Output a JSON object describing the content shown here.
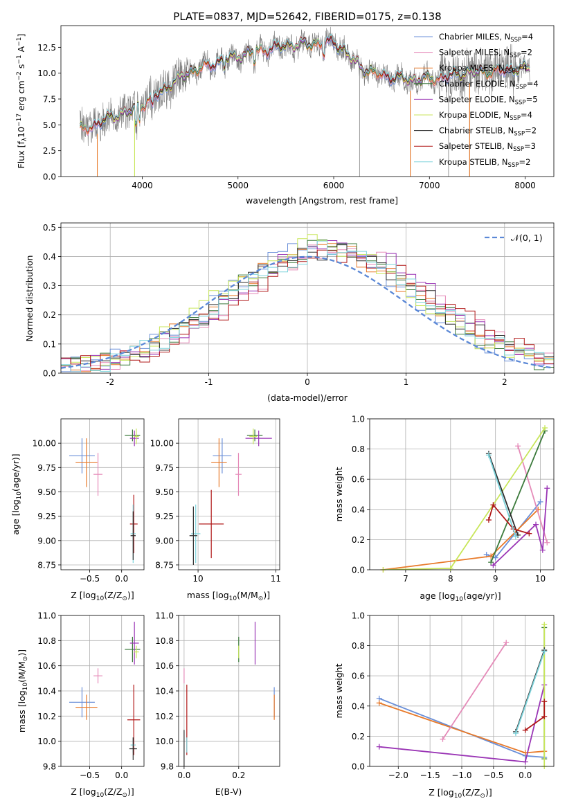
{
  "figure": {
    "title": "PLATE=0837, MJD=52642, FIBERID=0175, z=0.138"
  },
  "colors": {
    "Chabrier MILES": "#6a8fd8",
    "Salpeter MILES": "#e58ab8",
    "Kroupa MILES": "#e87a2a",
    "Chabrier ELODIE": "#3b7a3b",
    "Salpeter ELODIE": "#9a35b5",
    "Kroupa ELODIE": "#c8e65a",
    "Chabrier STELIB": "#2c2c2c",
    "Salpeter STELIB": "#b01818",
    "Kroupa STELIB": "#7dd4dc",
    "data": "#7f7f7f",
    "gaussian": "#5b88d6"
  },
  "chart_data": [
    {
      "id": "spectrum",
      "type": "line",
      "title": "PLATE=0837, MJD=52642, FIBERID=0175, z=0.138",
      "xlabel": "wavelength [Angstrom, rest frame]",
      "ylabel": "Flux [f_λ 10^-17 erg cm^-2 s^-1 A^-1]",
      "xlim": [
        3150,
        8300
      ],
      "ylim": [
        0,
        14.6
      ],
      "xticks": [
        "4000",
        "5000",
        "6000",
        "7000",
        "8000"
      ],
      "yticks": [
        "0.0",
        "2.5",
        "5.0",
        "7.5",
        "10.0",
        "12.5"
      ],
      "legend_position": "upper right",
      "legend": [
        {
          "model": "Chabrier MILES",
          "label": "Chabrier MILES, N",
          "sub": "SSP",
          "tail": "=4"
        },
        {
          "model": "Salpeter MILES",
          "label": "Salpeter MILES, N",
          "sub": "SSP",
          "tail": "=2"
        },
        {
          "model": "Kroupa MILES",
          "label": "Kroupa MILES, N",
          "sub": "SSP",
          "tail": "=4"
        },
        {
          "model": "Chabrier ELODIE",
          "label": "Chabrier ELODIE, N",
          "sub": "SSP",
          "tail": "=4"
        },
        {
          "model": "Salpeter ELODIE",
          "label": "Salpeter ELODIE, N",
          "sub": "SSP",
          "tail": "=5"
        },
        {
          "model": "Kroupa ELODIE",
          "label": "Kroupa ELODIE, N",
          "sub": "SSP",
          "tail": "=4"
        },
        {
          "model": "Chabrier STELIB",
          "label": "Chabrier STELIB, N",
          "sub": "SSP",
          "tail": "=2"
        },
        {
          "model": "Salpeter STELIB",
          "label": "Salpeter STELIB, N",
          "sub": "SSP",
          "tail": "=3"
        },
        {
          "model": "Kroupa STELIB",
          "label": "Kroupa STELIB, N",
          "sub": "SSP",
          "tail": "=2"
        }
      ],
      "continuum_knots": {
        "x": [
          3350,
          3500,
          3700,
          3900,
          4000,
          4200,
          4500,
          4800,
          5000,
          5200,
          5500,
          5800,
          6000,
          6100,
          6200,
          6300,
          6400,
          6500,
          6600,
          6800,
          7000,
          7200,
          7400,
          7600,
          7800,
          8000,
          8050
        ],
        "y": [
          4.5,
          5.0,
          5.8,
          6.4,
          7.0,
          8.2,
          10.2,
          11.1,
          11.6,
          12.2,
          12.6,
          12.9,
          13.0,
          12.2,
          11.2,
          10.5,
          10.1,
          9.9,
          9.6,
          9.3,
          9.5,
          9.7,
          10.0,
          10.2,
          10.3,
          10.4,
          10.4
        ]
      },
      "vertical_drops_x": [
        3530,
        3920,
        6270,
        6800,
        7200,
        7420
      ]
    },
    {
      "id": "residuals",
      "type": "histogram",
      "xlabel": "(data-model)/error",
      "ylabel": "Normed distribution",
      "xlim": [
        -2.5,
        2.5
      ],
      "ylim": [
        0,
        0.515
      ],
      "xticks": [
        "-2",
        "-1",
        "0",
        "1",
        "2"
      ],
      "yticks": [
        "0.0",
        "0.1",
        "0.2",
        "0.3",
        "0.4",
        "0.5"
      ],
      "reference_label": "𝒩(0, 1)",
      "legend_position": "upper right",
      "bin_width": 0.1,
      "series": [
        {
          "name": "Chabrier MILES",
          "shift": 0.12,
          "sigma": 0.95,
          "amp": 0.43,
          "seed": 3
        },
        {
          "name": "Salpeter MILES",
          "shift": 0.3,
          "sigma": 1.0,
          "amp": 0.41,
          "seed": 7
        },
        {
          "name": "Kroupa MILES",
          "shift": 0.15,
          "sigma": 0.97,
          "amp": 0.42,
          "seed": 11
        },
        {
          "name": "Chabrier ELODIE",
          "shift": 0.18,
          "sigma": 0.98,
          "amp": 0.42,
          "seed": 13
        },
        {
          "name": "Salpeter ELODIE",
          "shift": 0.28,
          "sigma": 1.0,
          "amp": 0.43,
          "seed": 17
        },
        {
          "name": "Kroupa ELODIE",
          "shift": 0.1,
          "sigma": 0.95,
          "amp": 0.44,
          "seed": 19
        },
        {
          "name": "Chabrier STELIB",
          "shift": 0.22,
          "sigma": 1.0,
          "amp": 0.41,
          "seed": 23
        },
        {
          "name": "Salpeter STELIB",
          "shift": 0.32,
          "sigma": 1.02,
          "amp": 0.4,
          "seed": 29
        },
        {
          "name": "Kroupa STELIB",
          "shift": 0.2,
          "sigma": 0.98,
          "amp": 0.41,
          "seed": 31
        }
      ]
    },
    {
      "id": "age-vs-Z",
      "type": "scatter",
      "xlabel": "Z [log10(Z/Z⊙)]",
      "ylabel": "age [log10(age/yr)]",
      "xlim": [
        -0.95,
        0.35
      ],
      "ylim": [
        8.7,
        10.25
      ],
      "xticks": [
        {
          "v": -0.5,
          "t": "−0.5"
        },
        {
          "v": 0.0,
          "t": "0.0"
        }
      ],
      "yticks": [
        {
          "v": 8.75,
          "t": "8.75"
        },
        {
          "v": 9.0,
          "t": "9.00"
        },
        {
          "v": 9.25,
          "t": "9.25"
        },
        {
          "v": 9.5,
          "t": "9.50"
        },
        {
          "v": 9.75,
          "t": "9.75"
        },
        {
          "v": 10.0,
          "t": "10.00"
        }
      ],
      "points": [
        {
          "model": "Chabrier MILES",
          "x": -0.62,
          "y": 9.87,
          "ex": 0.2,
          "ey": 0.18
        },
        {
          "model": "Kroupa MILES",
          "x": -0.55,
          "y": 9.8,
          "ex": 0.17,
          "ey": 0.25
        },
        {
          "model": "Salpeter MILES",
          "x": -0.37,
          "y": 9.68,
          "ex": 0.07,
          "ey": 0.22
        },
        {
          "model": "Chabrier ELODIE",
          "x": 0.17,
          "y": 10.08,
          "ex": 0.12,
          "ey": 0.06
        },
        {
          "model": "Salpeter ELODIE",
          "x": 0.2,
          "y": 10.05,
          "ex": 0.07,
          "ey": 0.08
        },
        {
          "model": "Kroupa ELODIE",
          "x": 0.23,
          "y": 10.07,
          "ex": 0.04,
          "ey": 0.08
        },
        {
          "model": "Salpeter STELIB",
          "x": 0.19,
          "y": 9.17,
          "ex": 0.06,
          "ey": 0.3
        },
        {
          "model": "Kroupa STELIB",
          "x": 0.18,
          "y": 9.07,
          "ex": 0.04,
          "ey": 0.3
        },
        {
          "model": "Chabrier STELIB",
          "x": 0.18,
          "y": 9.05,
          "ex": 0.04,
          "ey": 0.25
        }
      ]
    },
    {
      "id": "age-vs-mass",
      "type": "scatter",
      "xlabel": "mass [log10(M/M⊙)]",
      "ylabel": "",
      "xlim": [
        9.75,
        11.05
      ],
      "ylim": [
        8.7,
        10.25
      ],
      "xticks": [
        {
          "v": 10,
          "t": "10"
        },
        {
          "v": 11,
          "t": "11"
        }
      ],
      "yticks": [
        {
          "v": 8.75,
          "t": "8.75"
        },
        {
          "v": 9.0,
          "t": "9.00"
        },
        {
          "v": 9.25,
          "t": "9.25"
        },
        {
          "v": 9.5,
          "t": "9.50"
        },
        {
          "v": 9.75,
          "t": "9.75"
        },
        {
          "v": 10.0,
          "t": "10.00"
        }
      ],
      "points": [
        {
          "model": "Chabrier MILES",
          "x": 10.31,
          "y": 9.87,
          "ex": 0.12,
          "ey": 0.18
        },
        {
          "model": "Kroupa MILES",
          "x": 10.27,
          "y": 9.8,
          "ex": 0.1,
          "ey": 0.25
        },
        {
          "model": "Salpeter MILES",
          "x": 10.52,
          "y": 9.68,
          "ex": 0.04,
          "ey": 0.22
        },
        {
          "model": "Chabrier ELODIE",
          "x": 10.73,
          "y": 10.08,
          "ex": 0.1,
          "ey": 0.06
        },
        {
          "model": "Salpeter ELODIE",
          "x": 10.78,
          "y": 10.05,
          "ex": 0.17,
          "ey": 0.08
        },
        {
          "model": "Kroupa ELODIE",
          "x": 10.71,
          "y": 10.07,
          "ex": 0.05,
          "ey": 0.08
        },
        {
          "model": "Salpeter STELIB",
          "x": 10.17,
          "y": 9.17,
          "ex": 0.16,
          "ey": 0.35
        },
        {
          "model": "Kroupa STELIB",
          "x": 9.97,
          "y": 9.07,
          "ex": 0.06,
          "ey": 0.3
        },
        {
          "model": "Chabrier STELIB",
          "x": 9.94,
          "y": 9.05,
          "ex": 0.05,
          "ey": 0.3
        }
      ]
    },
    {
      "id": "massweight-vs-age",
      "type": "line",
      "xlabel": "age [log10(age/yr)]",
      "ylabel": "mass weight",
      "xlim": [
        6.2,
        10.3
      ],
      "ylim": [
        0,
        1
      ],
      "xticks": [
        {
          "v": 7,
          "t": "7"
        },
        {
          "v": 8,
          "t": "8"
        },
        {
          "v": 9,
          "t": "9"
        },
        {
          "v": 10,
          "t": "10"
        }
      ],
      "yticks": [
        {
          "v": 0,
          "t": "0.0"
        },
        {
          "v": 0.2,
          "t": "0.2"
        },
        {
          "v": 0.4,
          "t": "0.4"
        },
        {
          "v": 0.6,
          "t": "0.6"
        },
        {
          "v": 0.8,
          "t": "0.8"
        },
        {
          "v": 1,
          "t": "1.0"
        }
      ],
      "series": [
        {
          "name": "Chabrier MILES",
          "x": [
            8.8,
            9.0,
            10.0
          ],
          "y": [
            0.1,
            0.08,
            0.45
          ]
        },
        {
          "name": "Kroupa MILES",
          "x": [
            6.5,
            8.9,
            9.95
          ],
          "y": [
            0.0,
            0.09,
            0.4
          ]
        },
        {
          "name": "Salpeter MILES",
          "x": [
            9.5,
            10.15
          ],
          "y": [
            0.82,
            0.18
          ]
        },
        {
          "name": "Chabrier ELODIE",
          "x": [
            8.9,
            10.1
          ],
          "y": [
            0.05,
            0.92
          ]
        },
        {
          "name": "Salpeter ELODIE",
          "x": [
            8.95,
            9.9,
            10.05,
            10.15
          ],
          "y": [
            0.03,
            0.3,
            0.13,
            0.54
          ]
        },
        {
          "name": "Kroupa ELODIE",
          "x": [
            6.5,
            8.0,
            10.1
          ],
          "y": [
            0.0,
            0.01,
            0.94
          ]
        },
        {
          "name": "Chabrier STELIB",
          "x": [
            8.85,
            9.5
          ],
          "y": [
            0.77,
            0.23
          ]
        },
        {
          "name": "Salpeter STELIB",
          "x": [
            8.85,
            8.95,
            9.4,
            9.75
          ],
          "y": [
            0.33,
            0.43,
            0.27,
            0.24
          ]
        },
        {
          "name": "Kroupa STELIB",
          "x": [
            8.85,
            9.45
          ],
          "y": [
            0.76,
            0.22
          ]
        }
      ]
    },
    {
      "id": "mass-vs-Z",
      "type": "scatter",
      "xlabel": "Z [log10(Z/Z⊙)]",
      "ylabel": "mass [log10(M/M⊙)]",
      "xlim": [
        -0.95,
        0.35
      ],
      "ylim": [
        9.8,
        11.0
      ],
      "xticks": [
        {
          "v": -0.5,
          "t": "−0.5"
        },
        {
          "v": 0.0,
          "t": "0.0"
        }
      ],
      "yticks": [
        {
          "v": 9.8,
          "t": "9.8"
        },
        {
          "v": 10.0,
          "t": "10.0"
        },
        {
          "v": 10.2,
          "t": "10.2"
        },
        {
          "v": 10.4,
          "t": "10.4"
        },
        {
          "v": 10.6,
          "t": "10.6"
        },
        {
          "v": 10.8,
          "t": "10.8"
        },
        {
          "v": 11.0,
          "t": "11.0"
        }
      ],
      "points": [
        {
          "model": "Chabrier MILES",
          "x": -0.62,
          "y": 10.31,
          "ex": 0.2,
          "ey": 0.12
        },
        {
          "model": "Kroupa MILES",
          "x": -0.55,
          "y": 10.27,
          "ex": 0.17,
          "ey": 0.1
        },
        {
          "model": "Salpeter MILES",
          "x": -0.37,
          "y": 10.52,
          "ex": 0.07,
          "ey": 0.06
        },
        {
          "model": "Chabrier ELODIE",
          "x": 0.17,
          "y": 10.73,
          "ex": 0.12,
          "ey": 0.1
        },
        {
          "model": "Salpeter ELODIE",
          "x": 0.2,
          "y": 10.78,
          "ex": 0.07,
          "ey": 0.17
        },
        {
          "model": "Kroupa ELODIE",
          "x": 0.23,
          "y": 10.71,
          "ex": 0.04,
          "ey": 0.05
        },
        {
          "model": "Salpeter STELIB",
          "x": 0.19,
          "y": 10.17,
          "ex": 0.1,
          "ey": 0.28
        },
        {
          "model": "Kroupa STELIB",
          "x": 0.18,
          "y": 9.97,
          "ex": 0.04,
          "ey": 0.06
        },
        {
          "model": "Chabrier STELIB",
          "x": 0.18,
          "y": 9.94,
          "ex": 0.06,
          "ey": 0.09
        }
      ]
    },
    {
      "id": "mass-vs-ebv",
      "type": "scatter",
      "xlabel": "E(B-V)",
      "ylabel": "",
      "xlim": [
        -0.02,
        0.35
      ],
      "ylim": [
        9.8,
        11.0
      ],
      "xticks": [
        {
          "v": 0.0,
          "t": "0.0"
        },
        {
          "v": 0.2,
          "t": "0.2"
        }
      ],
      "yticks": [
        {
          "v": 9.8,
          "t": "9.8"
        },
        {
          "v": 10.0,
          "t": "10.0"
        },
        {
          "v": 10.2,
          "t": "10.2"
        },
        {
          "v": 10.4,
          "t": "10.4"
        },
        {
          "v": 10.6,
          "t": "10.6"
        },
        {
          "v": 10.8,
          "t": "10.8"
        },
        {
          "v": 11.0,
          "t": "11.0"
        }
      ],
      "points": [
        {
          "model": "Chabrier MILES",
          "x": 0.33,
          "y": 10.31,
          "ex": 0.0,
          "ey": 0.12
        },
        {
          "model": "Kroupa MILES",
          "x": 0.33,
          "y": 10.27,
          "ex": 0.0,
          "ey": 0.1
        },
        {
          "model": "Salpeter MILES",
          "x": 0.0,
          "y": 10.52,
          "ex": 0.0,
          "ey": 0.06
        },
        {
          "model": "Chabrier ELODIE",
          "x": 0.2,
          "y": 10.73,
          "ex": 0.0,
          "ey": 0.1
        },
        {
          "model": "Salpeter ELODIE",
          "x": 0.26,
          "y": 10.78,
          "ex": 0.0,
          "ey": 0.17
        },
        {
          "model": "Kroupa ELODIE",
          "x": 0.2,
          "y": 10.71,
          "ex": 0.0,
          "ey": 0.05
        },
        {
          "model": "Salpeter STELIB",
          "x": 0.01,
          "y": 10.17,
          "ex": 0.0,
          "ey": 0.28
        },
        {
          "model": "Kroupa STELIB",
          "x": 0.01,
          "y": 9.97,
          "ex": 0.0,
          "ey": 0.06
        },
        {
          "model": "Chabrier STELIB",
          "x": 0.0,
          "y": 9.94,
          "ex": 0.0,
          "ey": 0.15
        }
      ]
    },
    {
      "id": "massweight-vs-Z",
      "type": "line",
      "xlabel": "Z [log10(Z/Z⊙)]",
      "ylabel": "mass weight",
      "xlim": [
        -2.45,
        0.45
      ],
      "ylim": [
        0,
        1
      ],
      "xticks": [
        {
          "v": -2.0,
          "t": "−2.0"
        },
        {
          "v": -1.5,
          "t": "−1.5"
        },
        {
          "v": -1.0,
          "t": "−1.0"
        },
        {
          "v": -0.5,
          "t": "−0.5"
        },
        {
          "v": 0.0,
          "t": "0.0"
        }
      ],
      "yticks": [
        {
          "v": 0,
          "t": "0.0"
        },
        {
          "v": 0.2,
          "t": "0.2"
        },
        {
          "v": 0.4,
          "t": "0.4"
        },
        {
          "v": 0.6,
          "t": "0.6"
        },
        {
          "v": 0.8,
          "t": "0.8"
        },
        {
          "v": 1,
          "t": "1.0"
        }
      ],
      "series": [
        {
          "name": "Chabrier MILES",
          "x": [
            -2.3,
            0.0,
            0.3
          ],
          "y": [
            0.45,
            0.07,
            0.06
          ]
        },
        {
          "name": "Kroupa MILES",
          "x": [
            -2.3,
            0.0,
            0.3
          ],
          "y": [
            0.42,
            0.09,
            0.1
          ]
        },
        {
          "name": "Salpeter MILES",
          "x": [
            -1.3,
            -0.3
          ],
          "y": [
            0.18,
            0.82
          ]
        },
        {
          "name": "Chabrier ELODIE",
          "x": [
            0.3,
            0.3
          ],
          "y": [
            0.05,
            0.92
          ]
        },
        {
          "name": "Salpeter ELODIE",
          "x": [
            -2.3,
            0.0,
            0.3
          ],
          "y": [
            0.13,
            0.03,
            0.54
          ]
        },
        {
          "name": "Kroupa ELODIE",
          "x": [
            0.3,
            0.3
          ],
          "y": [
            0.0,
            0.94
          ]
        },
        {
          "name": "Chabrier STELIB",
          "x": [
            -0.15,
            0.3
          ],
          "y": [
            0.23,
            0.77
          ]
        },
        {
          "name": "Salpeter STELIB",
          "x": [
            0.0,
            0.3,
            0.3
          ],
          "y": [
            0.24,
            0.33,
            0.43
          ]
        },
        {
          "name": "Kroupa STELIB",
          "x": [
            -0.15,
            0.3
          ],
          "y": [
            0.22,
            0.76
          ]
        }
      ]
    }
  ]
}
